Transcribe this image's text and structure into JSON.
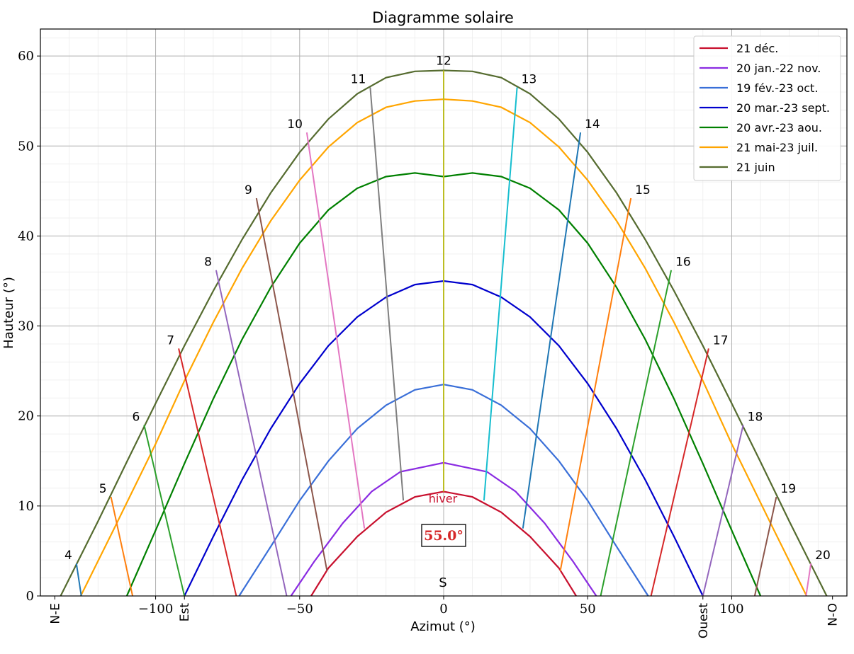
{
  "chart_data": {
    "type": "line",
    "title": "Diagramme solaire",
    "xlabel": "Azimut (°)",
    "ylabel": "Hauteur (°)",
    "xlim": [
      -140,
      140
    ],
    "ylim": [
      0,
      63
    ],
    "x_ticks": [
      -100,
      -50,
      0,
      50,
      100
    ],
    "x_tick_labels": [
      "−100",
      "−50",
      "0",
      "50",
      "100"
    ],
    "y_ticks": [
      0,
      10,
      20,
      30,
      40,
      50,
      60
    ],
    "y_tick_labels": [
      "0",
      "10",
      "20",
      "30",
      "40",
      "50",
      "60"
    ],
    "grid": true,
    "minor_grid": true,
    "legend_position": "top-right",
    "direction_labels": [
      {
        "text": "N-E",
        "x": -135
      },
      {
        "text": "Est",
        "x": -90
      },
      {
        "text": "Ouest",
        "x": 90
      },
      {
        "text": "N-O",
        "x": 135
      }
    ],
    "south_label": {
      "text": "S",
      "x": 0,
      "y": 1.5
    },
    "annotation_label": {
      "text": "hiver",
      "x": 0,
      "y": 11
    },
    "latitude_box": {
      "text": "55.0°",
      "x": 0,
      "y": 6.8,
      "color": "#d62728"
    },
    "series": [
      {
        "name": "21 déc.",
        "color": "#c8102e",
        "points": [
          [
            -46,
            0
          ],
          [
            -40,
            3.1
          ],
          [
            -30,
            6.6
          ],
          [
            -20,
            9.3
          ],
          [
            -10,
            11.0
          ],
          [
            0,
            11.6
          ],
          [
            10,
            11.0
          ],
          [
            20,
            9.3
          ],
          [
            30,
            6.6
          ],
          [
            40,
            3.1
          ],
          [
            46,
            0
          ]
        ]
      },
      {
        "name": "20 jan.-22 nov.",
        "color": "#8a2be2",
        "points": [
          [
            -53,
            0
          ],
          [
            -45,
            3.8
          ],
          [
            -35,
            8.1
          ],
          [
            -25,
            11.6
          ],
          [
            -15,
            13.8
          ],
          [
            0,
            14.8
          ],
          [
            15,
            13.8
          ],
          [
            25,
            11.6
          ],
          [
            35,
            8.1
          ],
          [
            45,
            3.8
          ],
          [
            53,
            0
          ]
        ]
      },
      {
        "name": "19 fév.-23 oct.",
        "color": "#3a6fd8",
        "points": [
          [
            -71,
            0
          ],
          [
            -60,
            5.5
          ],
          [
            -50,
            10.6
          ],
          [
            -40,
            15.0
          ],
          [
            -30,
            18.6
          ],
          [
            -20,
            21.2
          ],
          [
            -10,
            22.9
          ],
          [
            0,
            23.5
          ],
          [
            10,
            22.9
          ],
          [
            20,
            21.2
          ],
          [
            30,
            18.6
          ],
          [
            40,
            15.0
          ],
          [
            50,
            10.6
          ],
          [
            60,
            5.5
          ],
          [
            71,
            0
          ]
        ]
      },
      {
        "name": "20 mar.-23 sept.",
        "color": "#0000cd",
        "points": [
          [
            -90,
            0
          ],
          [
            -80,
            6.6
          ],
          [
            -70,
            12.9
          ],
          [
            -60,
            18.6
          ],
          [
            -50,
            23.6
          ],
          [
            -40,
            27.8
          ],
          [
            -30,
            31.0
          ],
          [
            -20,
            33.2
          ],
          [
            -10,
            34.6
          ],
          [
            0,
            35.0
          ],
          [
            10,
            34.6
          ],
          [
            20,
            33.2
          ],
          [
            30,
            31.0
          ],
          [
            40,
            27.8
          ],
          [
            50,
            23.6
          ],
          [
            60,
            18.6
          ],
          [
            70,
            12.9
          ],
          [
            80,
            6.6
          ],
          [
            90,
            0
          ]
        ]
      },
      {
        "name": "20 avr.-23 aou.",
        "color": "#008000",
        "points": [
          [
            -110,
            0
          ],
          [
            -100,
            7.3
          ],
          [
            -90,
            14.7
          ],
          [
            -80,
            21.9
          ],
          [
            -70,
            28.5
          ],
          [
            -60,
            34.3
          ],
          [
            -50,
            39.2
          ],
          [
            -40,
            42.9
          ],
          [
            -30,
            45.3
          ],
          [
            -20,
            46.6
          ],
          [
            -10,
            47.0
          ],
          [
            0,
            46.6
          ],
          [
            10,
            47.0
          ],
          [
            20,
            46.6
          ],
          [
            30,
            45.3
          ],
          [
            40,
            42.9
          ],
          [
            50,
            39.2
          ],
          [
            60,
            34.3
          ],
          [
            70,
            28.5
          ],
          [
            80,
            21.9
          ],
          [
            90,
            14.7
          ],
          [
            100,
            7.3
          ],
          [
            110,
            0
          ]
        ]
      },
      {
        "name": "21 mai-23 juil.",
        "color": "#ffa500",
        "points": [
          [
            -126,
            0
          ],
          [
            -115,
            7.1
          ],
          [
            -100,
            16.9
          ],
          [
            -90,
            23.9
          ],
          [
            -80,
            30.4
          ],
          [
            -70,
            36.4
          ],
          [
            -60,
            41.7
          ],
          [
            -50,
            46.2
          ],
          [
            -40,
            49.9
          ],
          [
            -30,
            52.6
          ],
          [
            -20,
            54.3
          ],
          [
            -10,
            55.0
          ],
          [
            0,
            55.2
          ],
          [
            10,
            55.0
          ],
          [
            20,
            54.3
          ],
          [
            30,
            52.6
          ],
          [
            40,
            49.9
          ],
          [
            50,
            46.2
          ],
          [
            60,
            41.7
          ],
          [
            70,
            36.4
          ],
          [
            80,
            30.4
          ],
          [
            90,
            23.9
          ],
          [
            100,
            16.9
          ],
          [
            115,
            7.1
          ],
          [
            126,
            0
          ]
        ]
      },
      {
        "name": "21 juin",
        "color": "#556b2f",
        "points": [
          [
            -133,
            0
          ],
          [
            -120,
            8.3
          ],
          [
            -110,
            14.9
          ],
          [
            -100,
            21.4
          ],
          [
            -90,
            27.8
          ],
          [
            -80,
            33.9
          ],
          [
            -70,
            39.6
          ],
          [
            -60,
            44.8
          ],
          [
            -50,
            49.3
          ],
          [
            -40,
            53.0
          ],
          [
            -30,
            55.8
          ],
          [
            -20,
            57.6
          ],
          [
            -10,
            58.3
          ],
          [
            0,
            58.4
          ],
          [
            10,
            58.3
          ],
          [
            20,
            57.6
          ],
          [
            30,
            55.8
          ],
          [
            40,
            53.0
          ],
          [
            50,
            49.3
          ],
          [
            60,
            44.8
          ],
          [
            70,
            39.6
          ],
          [
            80,
            33.9
          ],
          [
            90,
            27.8
          ],
          [
            100,
            21.4
          ],
          [
            110,
            14.9
          ],
          [
            120,
            8.3
          ],
          [
            133,
            0
          ]
        ]
      }
    ],
    "hour_lines": [
      {
        "label": "4",
        "color": "#1f77b4",
        "points": [
          [
            -127.5,
            3.6
          ],
          [
            -125.8,
            0
          ]
        ]
      },
      {
        "label": "5",
        "color": "#ff7f0e",
        "points": [
          [
            -115.5,
            11.0
          ],
          [
            -108,
            0
          ]
        ]
      },
      {
        "label": "6",
        "color": "#2ca02c",
        "points": [
          [
            -104,
            19.0
          ],
          [
            -90,
            0
          ]
        ]
      },
      {
        "label": "7",
        "color": "#d62728",
        "points": [
          [
            -92,
            27.5
          ],
          [
            -72,
            0
          ]
        ]
      },
      {
        "label": "8",
        "color": "#9467bd",
        "points": [
          [
            -79,
            36.2
          ],
          [
            -54.5,
            0
          ]
        ]
      },
      {
        "label": "9",
        "color": "#8c564b",
        "points": [
          [
            -65,
            44.2
          ],
          [
            -40.5,
            2.8
          ]
        ]
      },
      {
        "label": "10",
        "color": "#e377c2",
        "points": [
          [
            -47.5,
            51.5
          ],
          [
            -27.5,
            7.5
          ]
        ]
      },
      {
        "label": "11",
        "color": "#7f7f7f",
        "points": [
          [
            -25.5,
            56.5
          ],
          [
            -14,
            10.6
          ]
        ]
      },
      {
        "label": "12",
        "color": "#bcbd22",
        "points": [
          [
            0,
            58.4
          ],
          [
            0,
            11.6
          ]
        ]
      },
      {
        "label": "13",
        "color": "#17becf",
        "points": [
          [
            25.5,
            56.5
          ],
          [
            14,
            10.6
          ]
        ]
      },
      {
        "label": "14",
        "color": "#1f77b4",
        "points": [
          [
            47.5,
            51.5
          ],
          [
            27.5,
            7.5
          ]
        ]
      },
      {
        "label": "15",
        "color": "#ff7f0e",
        "points": [
          [
            65,
            44.2
          ],
          [
            40.5,
            2.8
          ]
        ]
      },
      {
        "label": "16",
        "color": "#2ca02c",
        "points": [
          [
            79,
            36.2
          ],
          [
            54.5,
            0
          ]
        ]
      },
      {
        "label": "17",
        "color": "#d62728",
        "points": [
          [
            92,
            27.5
          ],
          [
            72,
            0
          ]
        ]
      },
      {
        "label": "18",
        "color": "#9467bd",
        "points": [
          [
            104,
            19.0
          ],
          [
            90,
            0
          ]
        ]
      },
      {
        "label": "19",
        "color": "#8c564b",
        "points": [
          [
            115.5,
            11.0
          ],
          [
            108,
            0
          ]
        ]
      },
      {
        "label": "20",
        "color": "#e377c2",
        "points": [
          [
            127.5,
            3.6
          ],
          [
            125.8,
            0
          ]
        ]
      }
    ]
  }
}
